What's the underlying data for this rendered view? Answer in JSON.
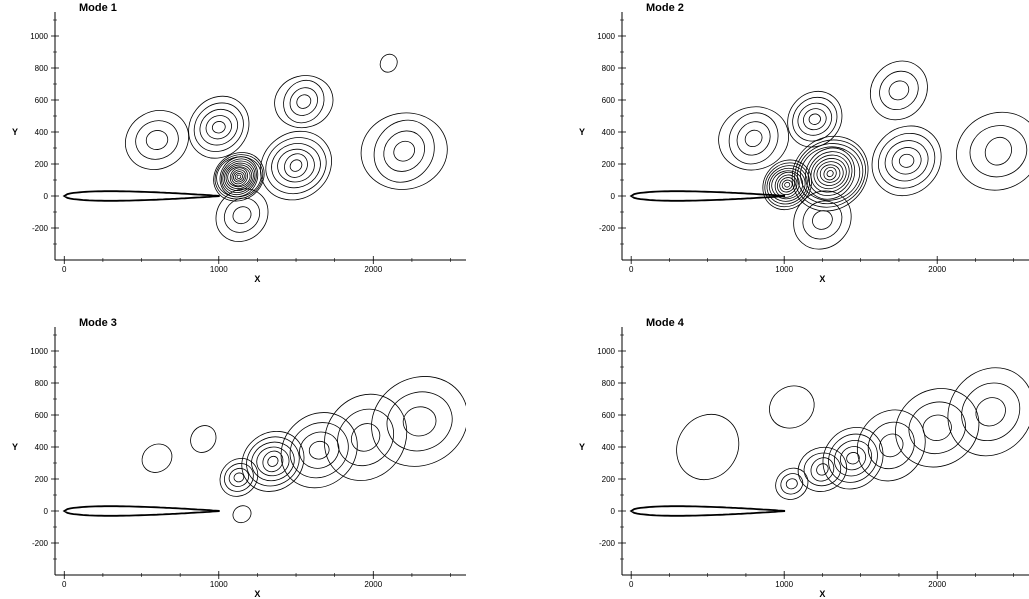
{
  "chart_data": [
    {
      "type": "contour",
      "title": "Mode 1",
      "xlabel": "X",
      "ylabel": "Y",
      "xlim": [
        -60,
        2600
      ],
      "ylim": [
        -400,
        1150
      ],
      "xticks": [
        0,
        1000,
        2000
      ],
      "yticks": [
        -200,
        0,
        200,
        400,
        600,
        800,
        1000
      ],
      "airfoil": {
        "x_start": 0,
        "x_end": 1000,
        "max_thickness": 60
      },
      "cells": [
        {
          "x": 1130,
          "y": 120,
          "n": 14,
          "r": 170
        },
        {
          "x": 1500,
          "y": 190,
          "n": 6,
          "r": 240
        },
        {
          "x": 1000,
          "y": 430,
          "n": 5,
          "r": 210
        },
        {
          "x": 1550,
          "y": 590,
          "n": 4,
          "r": 190
        },
        {
          "x": 600,
          "y": 350,
          "n": 3,
          "r": 210
        },
        {
          "x": 2200,
          "y": 280,
          "n": 4,
          "r": 280
        },
        {
          "x": 2100,
          "y": 830,
          "n": 1,
          "r": 60
        },
        {
          "x": 1150,
          "y": -120,
          "n": 3,
          "r": 180
        }
      ]
    },
    {
      "type": "contour",
      "title": "Mode 2",
      "xlabel": "X",
      "ylabel": "Y",
      "xlim": [
        -60,
        2600
      ],
      "ylim": [
        -400,
        1150
      ],
      "xticks": [
        0,
        1000,
        2000
      ],
      "yticks": [
        -200,
        0,
        200,
        400,
        600,
        800,
        1000
      ],
      "airfoil": {
        "x_start": 0,
        "x_end": 1000,
        "max_thickness": 60
      },
      "cells": [
        {
          "x": 1020,
          "y": 70,
          "n": 10,
          "r": 170
        },
        {
          "x": 1300,
          "y": 140,
          "n": 12,
          "r": 260
        },
        {
          "x": 1200,
          "y": 480,
          "n": 5,
          "r": 190
        },
        {
          "x": 800,
          "y": 360,
          "n": 4,
          "r": 230
        },
        {
          "x": 1800,
          "y": 220,
          "n": 5,
          "r": 240
        },
        {
          "x": 1750,
          "y": 660,
          "n": 3,
          "r": 200
        },
        {
          "x": 2400,
          "y": 280,
          "n": 3,
          "r": 280
        },
        {
          "x": 1250,
          "y": -150,
          "n": 3,
          "r": 200
        }
      ]
    },
    {
      "type": "contour",
      "title": "Mode 3",
      "xlabel": "X",
      "ylabel": "Y",
      "xlim": [
        -60,
        2600
      ],
      "ylim": [
        -400,
        1150
      ],
      "xticks": [
        0,
        1000,
        2000
      ],
      "yticks": [
        -200,
        0,
        200,
        400,
        600,
        800,
        1000
      ],
      "airfoil": {
        "x_start": 0,
        "x_end": 1000,
        "max_thickness": 60
      },
      "cells": [
        {
          "x": 1130,
          "y": 210,
          "n": 4,
          "r": 130
        },
        {
          "x": 1350,
          "y": 310,
          "n": 6,
          "r": 210
        },
        {
          "x": 1650,
          "y": 380,
          "n": 4,
          "r": 260
        },
        {
          "x": 1950,
          "y": 460,
          "n": 3,
          "r": 290
        },
        {
          "x": 2300,
          "y": 560,
          "n": 3,
          "r": 320
        },
        {
          "x": 600,
          "y": 330,
          "n": 1,
          "r": 100
        },
        {
          "x": 900,
          "y": 450,
          "n": 1,
          "r": 90
        },
        {
          "x": 1150,
          "y": -20,
          "n": 1,
          "r": 60
        }
      ]
    },
    {
      "type": "contour",
      "title": "Mode 4",
      "xlabel": "X",
      "ylabel": "Y",
      "xlim": [
        -60,
        2600
      ],
      "ylim": [
        -400,
        1150
      ],
      "xticks": [
        0,
        1000,
        2000
      ],
      "yticks": [
        -200,
        0,
        200,
        400,
        600,
        800,
        1000
      ],
      "airfoil": {
        "x_start": 0,
        "x_end": 1000,
        "max_thickness": 60
      },
      "cells": [
        {
          "x": 1050,
          "y": 170,
          "n": 3,
          "r": 110
        },
        {
          "x": 1250,
          "y": 260,
          "n": 4,
          "r": 160
        },
        {
          "x": 1450,
          "y": 330,
          "n": 5,
          "r": 210
        },
        {
          "x": 1700,
          "y": 410,
          "n": 3,
          "r": 240
        },
        {
          "x": 2000,
          "y": 520,
          "n": 3,
          "r": 280
        },
        {
          "x": 2350,
          "y": 620,
          "n": 3,
          "r": 300
        },
        {
          "x": 500,
          "y": 400,
          "n": 1,
          "r": 220
        },
        {
          "x": 1050,
          "y": 650,
          "n": 1,
          "r": 150
        }
      ]
    }
  ]
}
